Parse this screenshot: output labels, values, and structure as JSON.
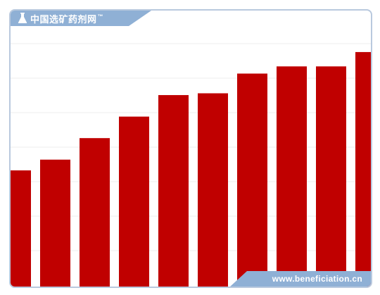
{
  "header": {
    "brand": "中国选矿药剂网",
    "trademark": "™"
  },
  "footer": {
    "url": "www.beneficiation.cn"
  },
  "colors": {
    "bar": "#c00000",
    "grid": "#ececec",
    "frame": "#b9c9de",
    "tab": "#8fb0d5"
  },
  "chart_data": {
    "type": "bar",
    "categories": [
      "",
      "",
      "",
      "",
      "",
      "",
      "",
      "",
      "",
      ""
    ],
    "values": [
      32,
      35,
      41,
      47,
      53,
      53.5,
      59,
      61,
      61,
      65
    ],
    "title": "",
    "xlabel": "",
    "ylabel": "",
    "ylim": [
      0,
      75
    ],
    "grid": true
  }
}
